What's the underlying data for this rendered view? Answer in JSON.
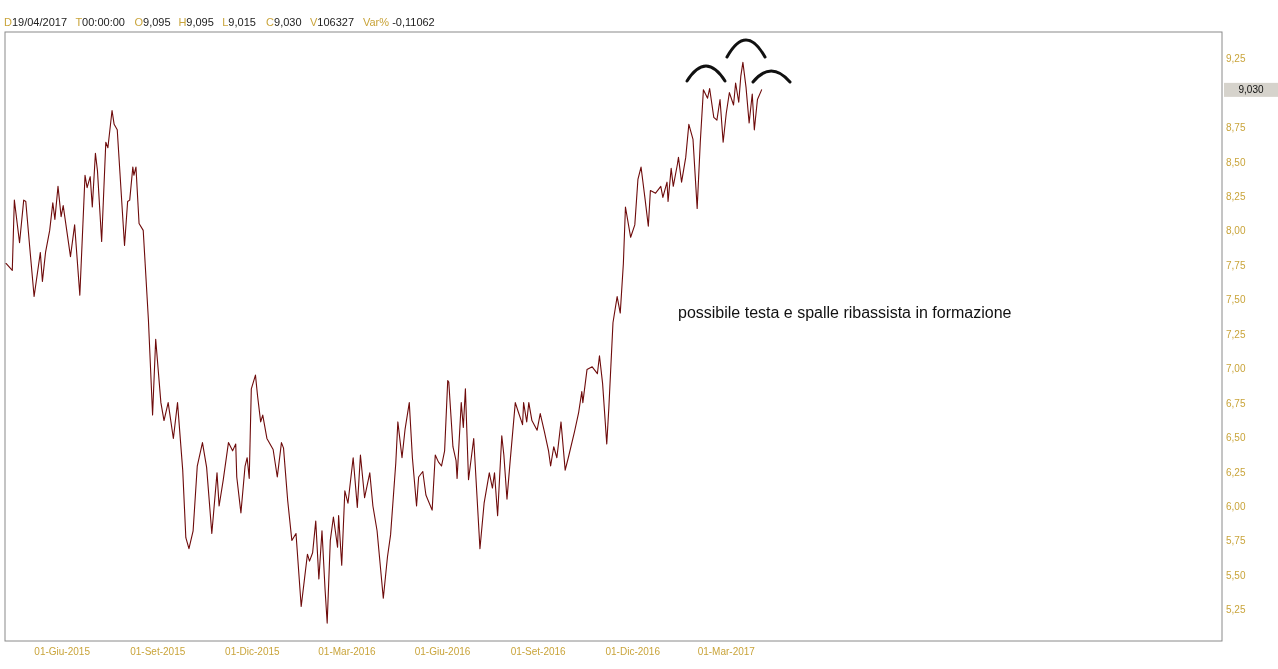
{
  "chart_data": {
    "type": "line",
    "annotations": [
      "D19/04/2017",
      "T00:00:00",
      "O9,095",
      "H9,095",
      "L9,015",
      "C9,030",
      "V106327",
      "Var% -0,11062",
      "possibile testa e spalle ribassista in formazione",
      "9,030"
    ],
    "x": [
      "2015-04-08",
      "2015-04-14",
      "2015-04-16",
      "2015-04-21",
      "2015-04-25",
      "2015-04-27",
      "2015-05-01",
      "2015-05-05",
      "2015-05-11",
      "2015-05-13",
      "2015-05-16",
      "2015-05-20",
      "2015-05-23",
      "2015-05-25",
      "2015-05-28",
      "2015-05-31",
      "2015-06-02",
      "2015-06-09",
      "2015-06-13",
      "2015-06-18",
      "2015-06-23",
      "2015-06-25",
      "2015-06-28",
      "2015-06-30",
      "2015-07-03",
      "2015-07-05",
      "2015-07-09",
      "2015-07-13",
      "2015-07-15",
      "2015-07-19",
      "2015-07-21",
      "2015-07-24",
      "2015-07-29",
      "2015-07-31",
      "2015-08-03",
      "2015-08-05",
      "2015-08-08",
      "2015-08-09",
      "2015-08-11",
      "2015-08-14",
      "2015-08-18",
      "2015-08-23",
      "2015-08-27",
      "2015-08-30",
      "2015-09-04",
      "2015-09-07",
      "2015-09-11",
      "2015-09-16",
      "2015-09-20",
      "2015-09-25",
      "2015-09-28",
      "2015-10-01",
      "2015-10-05",
      "2015-10-09",
      "2015-10-14",
      "2015-10-18",
      "2015-10-23",
      "2015-10-28",
      "2015-10-30",
      "2015-11-03",
      "2015-11-08",
      "2015-11-12",
      "2015-11-15",
      "2015-11-16",
      "2015-11-20",
      "2015-11-24",
      "2015-11-26",
      "2015-11-28",
      "2015-11-30",
      "2015-12-04",
      "2015-12-06",
      "2015-12-09",
      "2015-12-11",
      "2015-12-15",
      "2015-12-21",
      "2015-12-25",
      "2015-12-29",
      "2015-12-31",
      "2016-01-04",
      "2016-01-08",
      "2016-01-12",
      "2016-01-17",
      "2016-01-20",
      "2016-01-23",
      "2016-01-25",
      "2016-01-28",
      "2016-01-31",
      "2016-02-03",
      "2016-02-06",
      "2016-02-09",
      "2016-02-11",
      "2016-02-14",
      "2016-02-17",
      "2016-02-21",
      "2016-02-22",
      "2016-02-25",
      "2016-02-28",
      "2016-03-02",
      "2016-03-07",
      "2016-03-11",
      "2016-03-14",
      "2016-03-18",
      "2016-03-23",
      "2016-03-26",
      "2016-03-30",
      "2016-04-05",
      "2016-04-09",
      "2016-04-12",
      "2016-04-17",
      "2016-04-19",
      "2016-04-23",
      "2016-04-26",
      "2016-04-30",
      "2016-05-03",
      "2016-05-07",
      "2016-05-09",
      "2016-05-13",
      "2016-05-16",
      "2016-05-22",
      "2016-05-25",
      "2016-05-28",
      "2016-05-31",
      "2016-06-03",
      "2016-06-06",
      "2016-06-07",
      "2016-06-11",
      "2016-06-14",
      "2016-06-15",
      "2016-06-19",
      "2016-06-21",
      "2016-06-23",
      "2016-06-26",
      "2016-07-01",
      "2016-07-07",
      "2016-07-11",
      "2016-07-16",
      "2016-07-19",
      "2016-07-21",
      "2016-07-24",
      "2016-07-28",
      "2016-07-30",
      "2016-08-02",
      "2016-08-05",
      "2016-08-10",
      "2016-08-13",
      "2016-08-17",
      "2016-08-18",
      "2016-08-21",
      "2016-08-23",
      "2016-08-26",
      "2016-08-31",
      "2016-09-03",
      "2016-09-07",
      "2016-09-11",
      "2016-09-13",
      "2016-09-16",
      "2016-09-19",
      "2016-09-23",
      "2016-09-27",
      "2016-09-30",
      "2016-10-06",
      "2016-10-10",
      "2016-10-13",
      "2016-10-14",
      "2016-10-18",
      "2016-10-23",
      "2016-10-28",
      "2016-10-30",
      "2016-11-02",
      "2016-11-06",
      "2016-11-08",
      "2016-11-12",
      "2016-11-16",
      "2016-11-19",
      "2016-11-22",
      "2016-11-24",
      "2016-11-29",
      "2016-12-03",
      "2016-12-06",
      "2016-12-09",
      "2016-12-13",
      "2016-12-16",
      "2016-12-18",
      "2016-12-23",
      "2016-12-28",
      "2016-12-30",
      "2017-01-03",
      "2017-01-04",
      "2017-01-07",
      "2017-01-09",
      "2017-01-13",
      "2017-01-14",
      "2017-01-17",
      "2017-01-21",
      "2017-01-24",
      "2017-01-28",
      "2017-02-01",
      "2017-02-04",
      "2017-02-07",
      "2017-02-11",
      "2017-02-13",
      "2017-02-17",
      "2017-02-20",
      "2017-02-23",
      "2017-02-26",
      "2017-03-01",
      "2017-03-04",
      "2017-03-08",
      "2017-03-10",
      "2017-03-13",
      "2017-03-15",
      "2017-03-17",
      "2017-03-20",
      "2017-03-23",
      "2017-03-26",
      "2017-03-28",
      "2017-03-31",
      "2017-04-04"
    ],
    "series": [
      {
        "color": "#6e0b0b",
        "values": [
          7.77,
          7.72,
          8.23,
          7.92,
          8.23,
          8.22,
          7.87,
          7.53,
          7.85,
          7.64,
          7.85,
          8.01,
          8.21,
          8.09,
          8.33,
          8.11,
          8.19,
          7.82,
          8.05,
          7.54,
          8.41,
          8.32,
          8.4,
          8.18,
          8.57,
          8.44,
          7.93,
          8.65,
          8.61,
          8.88,
          8.78,
          8.74,
          8.14,
          7.9,
          8.22,
          8.23,
          8.47,
          8.41,
          8.47,
          8.06,
          8.01,
          7.36,
          6.67,
          7.22,
          6.76,
          6.63,
          6.76,
          6.5,
          6.76,
          6.27,
          5.78,
          5.7,
          5.83,
          6.3,
          6.47,
          6.29,
          5.81,
          6.25,
          6.01,
          6.2,
          6.47,
          6.41,
          6.46,
          6.22,
          5.96,
          6.3,
          6.36,
          6.21,
          6.86,
          6.96,
          6.81,
          6.62,
          6.67,
          6.5,
          6.42,
          6.22,
          6.47,
          6.43,
          6.05,
          5.76,
          5.81,
          5.28,
          5.47,
          5.66,
          5.61,
          5.67,
          5.9,
          5.48,
          5.83,
          5.4,
          5.16,
          5.76,
          5.93,
          5.71,
          5.94,
          5.58,
          6.12,
          6.03,
          6.36,
          6.0,
          6.38,
          6.07,
          6.25,
          6.01,
          5.83,
          5.34,
          5.64,
          5.8,
          6.32,
          6.62,
          6.36,
          6.57,
          6.76,
          6.36,
          6.01,
          6.22,
          6.26,
          6.09,
          5.98,
          6.38,
          6.33,
          6.3,
          6.41,
          6.92,
          6.91,
          6.44,
          6.34,
          6.21,
          6.76,
          6.58,
          6.86,
          6.2,
          6.5,
          5.7,
          6.03,
          6.25,
          6.14,
          6.25,
          5.94,
          6.52,
          6.38,
          6.06,
          6.33,
          6.76,
          6.69,
          6.6,
          6.76,
          6.62,
          6.76,
          6.63,
          6.56,
          6.68,
          6.55,
          6.41,
          6.3,
          6.44,
          6.36,
          6.62,
          6.27,
          6.36,
          6.55,
          6.69,
          6.84,
          6.76,
          7.0,
          7.02,
          6.97,
          7.1,
          6.9,
          6.46,
          6.72,
          7.34,
          7.53,
          7.41,
          7.77,
          8.18,
          7.96,
          8.05,
          8.38,
          8.47,
          8.23,
          8.04,
          8.3,
          8.28,
          8.33,
          8.25,
          8.36,
          8.22,
          8.46,
          8.33,
          8.49,
          8.54,
          8.36,
          8.54,
          8.78,
          8.67,
          8.17,
          8.65,
          9.03,
          8.97,
          9.04,
          8.83,
          8.81,
          8.96,
          8.65,
          8.86,
          9.01,
          8.92,
          9.08,
          8.94,
          9.13,
          9.23,
          9.05,
          8.79,
          9.0,
          8.74,
          8.96,
          9.03
        ]
      }
    ],
    "xlim": [
      "2015-04-07",
      "2018-06-21"
    ],
    "xticks": [
      {
        "value": "2015-06-01",
        "label": "01-Giu-2015"
      },
      {
        "value": "2015-09-01",
        "label": "01-Set-2015"
      },
      {
        "value": "2015-12-01",
        "label": "01-Dic-2015"
      },
      {
        "value": "2016-03-01",
        "label": "01-Mar-2016"
      },
      {
        "value": "2016-06-01",
        "label": "01-Giu-2016"
      },
      {
        "value": "2016-09-01",
        "label": "01-Set-2016"
      },
      {
        "value": "2016-12-01",
        "label": "01-Dic-2016"
      },
      {
        "value": "2017-03-01",
        "label": "01-Mar-2017"
      }
    ],
    "ylim": [
      5.03,
      9.45
    ],
    "yticks": [
      {
        "value": 5.25,
        "label": "5,25"
      },
      {
        "value": 5.5,
        "label": "5,50"
      },
      {
        "value": 5.75,
        "label": "5,75"
      },
      {
        "value": 6,
        "label": "6,00"
      },
      {
        "value": 6.25,
        "label": "6,25"
      },
      {
        "value": 6.5,
        "label": "6,50"
      },
      {
        "value": 6.75,
        "label": "6,75"
      },
      {
        "value": 7,
        "label": "7,00"
      },
      {
        "value": 7.25,
        "label": "7,25"
      },
      {
        "value": 7.5,
        "label": "7,50"
      },
      {
        "value": 7.75,
        "label": "7,75"
      },
      {
        "value": 8,
        "label": "8,00"
      },
      {
        "value": 8.25,
        "label": "8,25"
      },
      {
        "value": 8.5,
        "label": "8,50"
      },
      {
        "value": 8.75,
        "label": "8,75"
      },
      {
        "value": 9.25,
        "label": "9,25"
      }
    ]
  }
}
